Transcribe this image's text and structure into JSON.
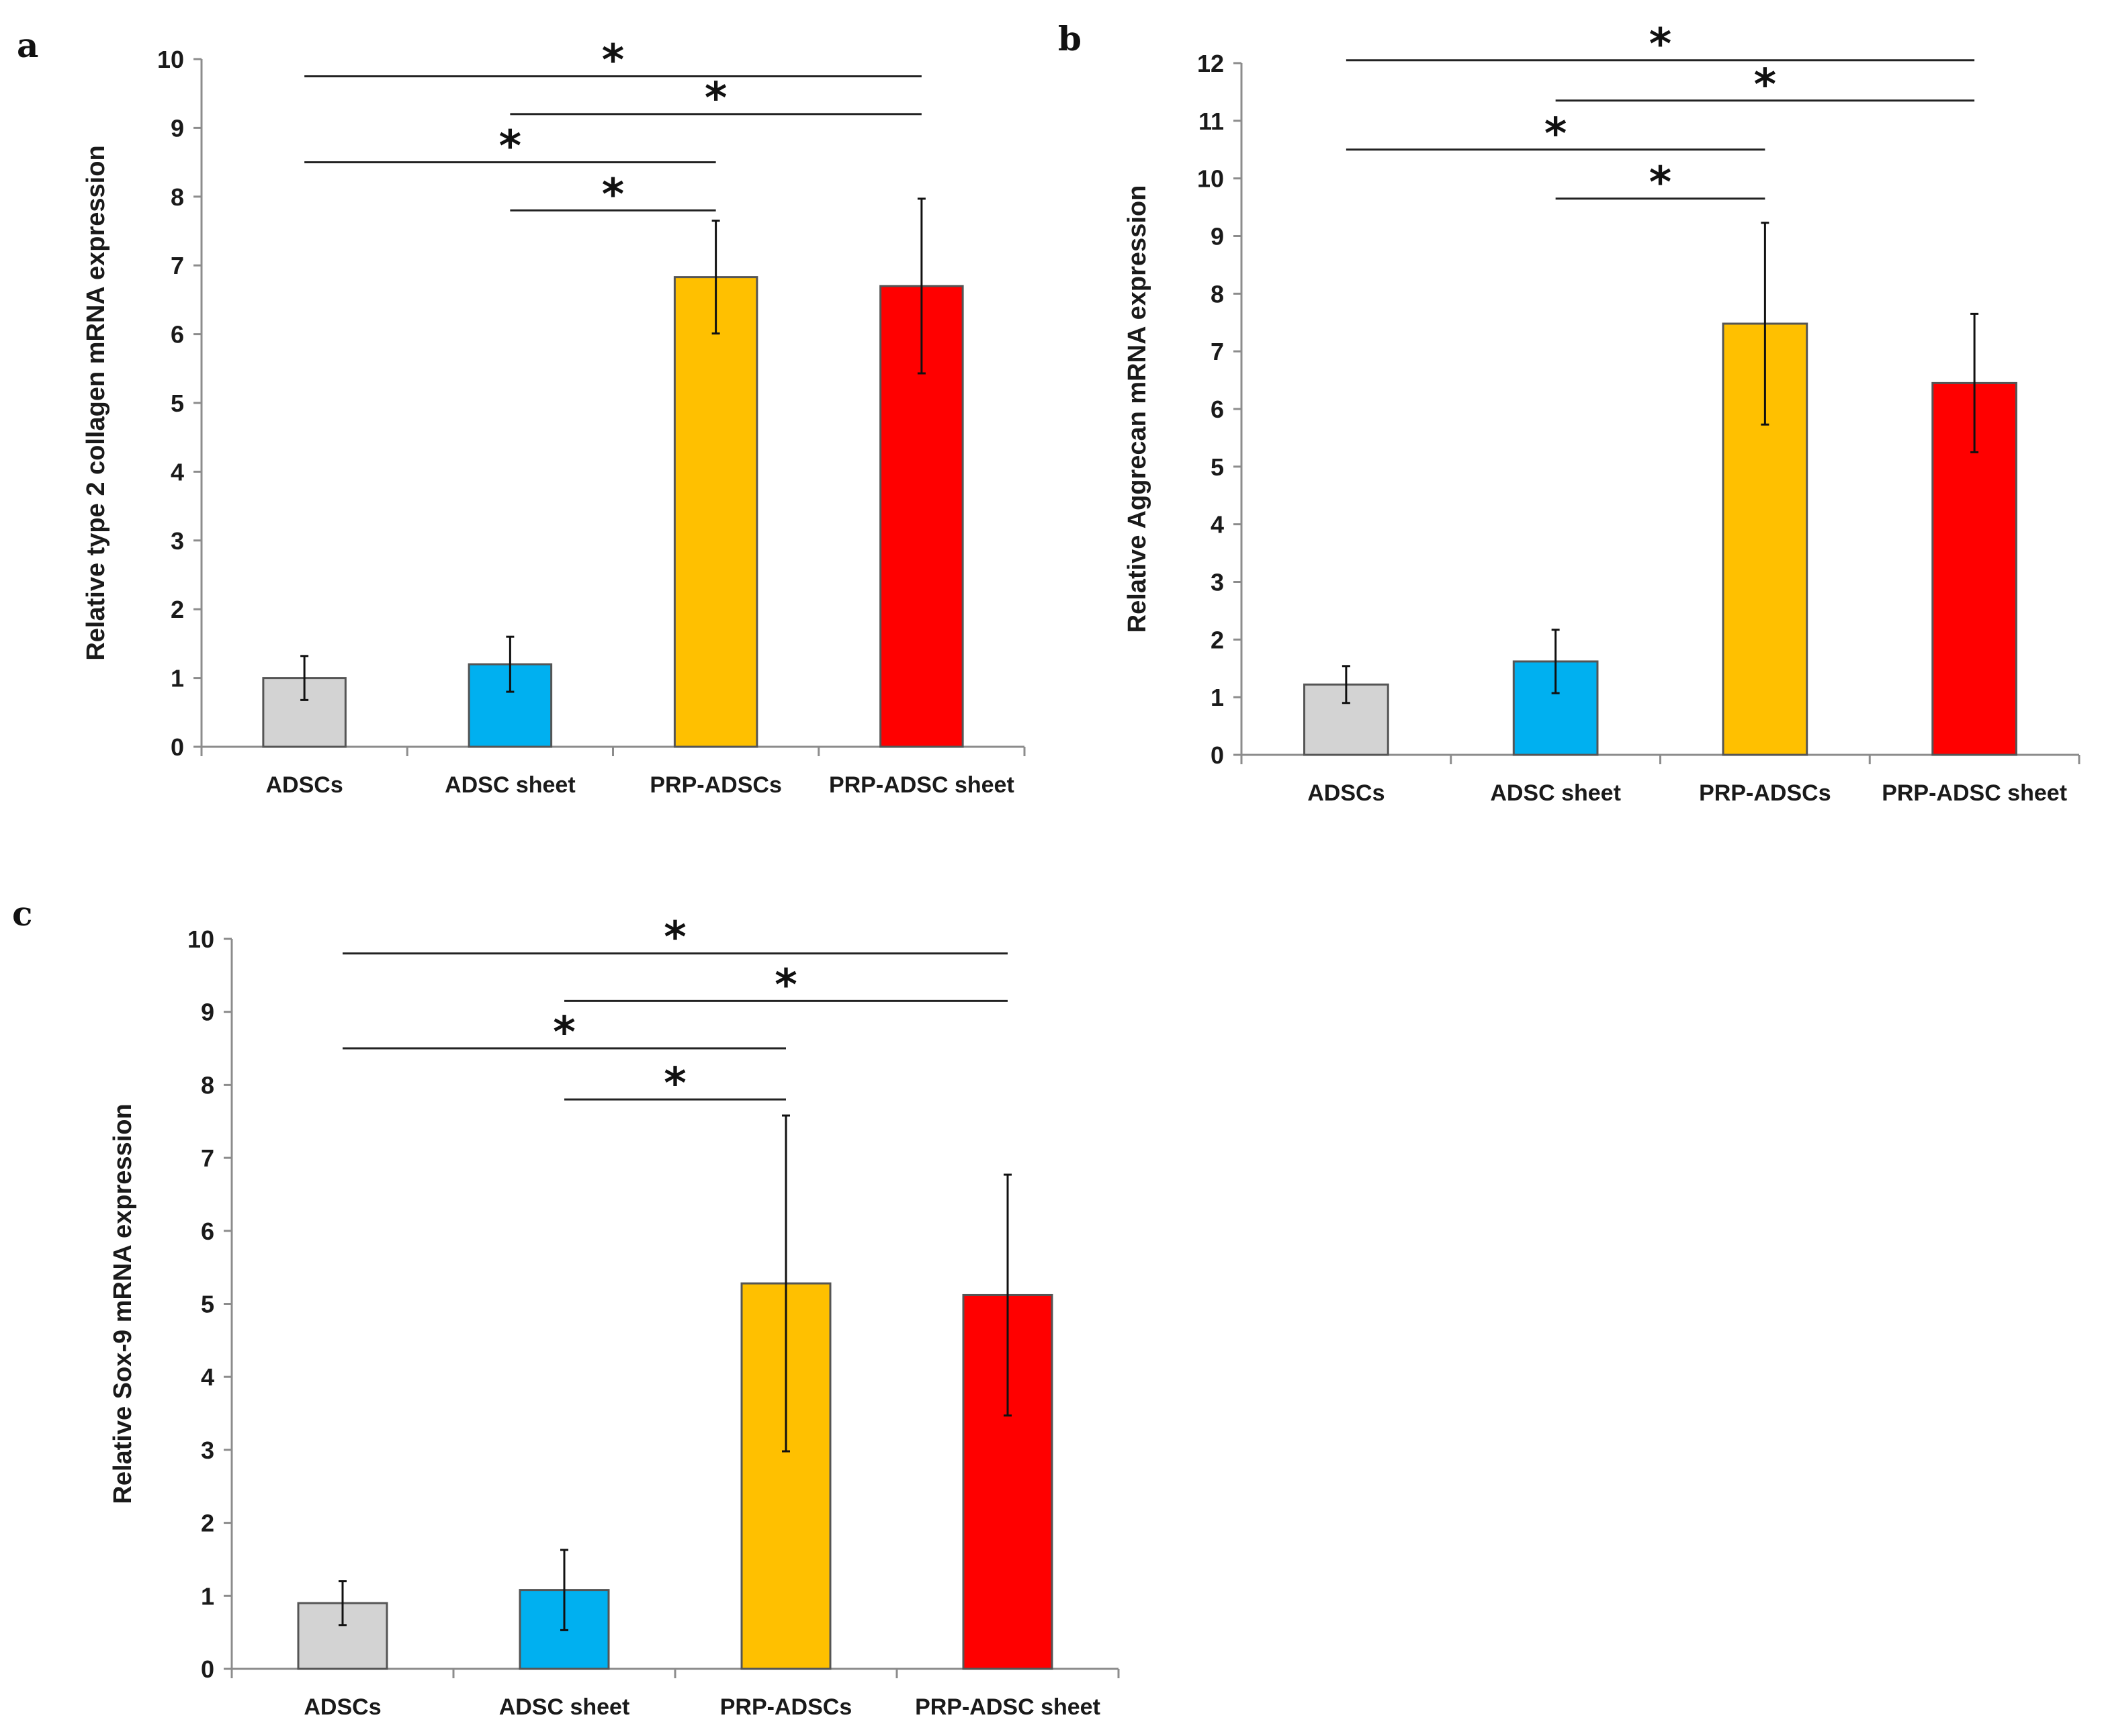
{
  "chart_data": [
    {
      "type": "bar",
      "panel_label": "a",
      "ylabel": "Relative type 2 collagen mRNA expression",
      "categories": [
        "ADSCs",
        "ADSC sheet",
        "PRP-ADSCs",
        "PRP-ADSC sheet"
      ],
      "values": [
        1.0,
        1.2,
        6.83,
        6.7
      ],
      "errors": [
        0.32,
        0.4,
        0.82,
        1.27
      ],
      "colors": [
        "#d3d3d3",
        "#00b0f0",
        "#ffc000",
        "#ff0000"
      ],
      "ylim": [
        0,
        10
      ],
      "yticks": [
        0,
        1,
        2,
        3,
        4,
        5,
        6,
        7,
        8,
        9,
        10
      ],
      "significance": [
        {
          "from": 0,
          "to": 3,
          "y": 9.75,
          "label": "*"
        },
        {
          "from": 1,
          "to": 3,
          "y": 9.2,
          "label": "*"
        },
        {
          "from": 0,
          "to": 2,
          "y": 8.5,
          "label": "*"
        },
        {
          "from": 1,
          "to": 2,
          "y": 7.8,
          "label": "*"
        }
      ]
    },
    {
      "type": "bar",
      "panel_label": "b",
      "ylabel": "Relative Aggrecan mRNA expression",
      "categories": [
        "ADSCs",
        "ADSC sheet",
        "PRP-ADSCs",
        "PRP-ADSC sheet"
      ],
      "values": [
        1.22,
        1.62,
        7.48,
        6.45
      ],
      "errors": [
        0.32,
        0.55,
        1.75,
        1.2
      ],
      "colors": [
        "#d3d3d3",
        "#00b0f0",
        "#ffc000",
        "#ff0000"
      ],
      "ylim": [
        0,
        12
      ],
      "yticks": [
        0,
        1,
        2,
        3,
        4,
        5,
        6,
        7,
        8,
        9,
        10,
        11,
        12
      ],
      "significance": [
        {
          "from": 0,
          "to": 3,
          "y": 12.05,
          "label": "*"
        },
        {
          "from": 1,
          "to": 3,
          "y": 11.35,
          "label": "*"
        },
        {
          "from": 0,
          "to": 2,
          "y": 10.5,
          "label": "*"
        },
        {
          "from": 1,
          "to": 2,
          "y": 9.65,
          "label": "*"
        }
      ]
    },
    {
      "type": "bar",
      "panel_label": "c",
      "ylabel": "Relative Sox-9 mRNA expression",
      "categories": [
        "ADSCs",
        "ADSC sheet",
        "PRP-ADSCs",
        "PRP-ADSC sheet"
      ],
      "values": [
        0.9,
        1.08,
        5.28,
        5.12
      ],
      "errors": [
        0.3,
        0.55,
        2.3,
        1.65
      ],
      "colors": [
        "#d3d3d3",
        "#00b0f0",
        "#ffc000",
        "#ff0000"
      ],
      "ylim": [
        0,
        10
      ],
      "yticks": [
        0,
        1,
        2,
        3,
        4,
        5,
        6,
        7,
        8,
        9,
        10
      ],
      "significance": [
        {
          "from": 0,
          "to": 3,
          "y": 9.8,
          "label": "*"
        },
        {
          "from": 1,
          "to": 3,
          "y": 9.15,
          "label": "*"
        },
        {
          "from": 0,
          "to": 2,
          "y": 8.5,
          "label": "*"
        },
        {
          "from": 1,
          "to": 2,
          "y": 7.8,
          "label": "*"
        }
      ]
    }
  ]
}
